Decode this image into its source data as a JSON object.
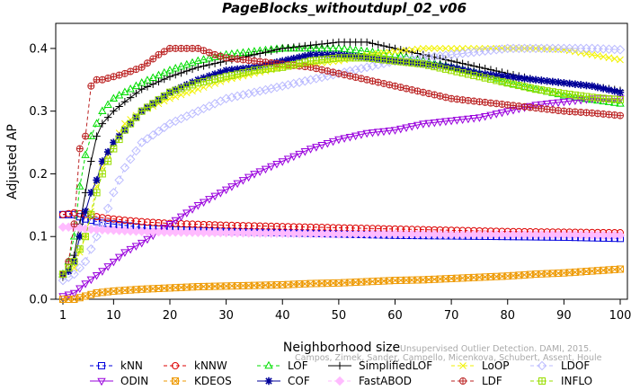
{
  "chart_data": {
    "type": "line",
    "title": "PageBlocks_withoutdupl_02_v06",
    "xlabel": "Neighborhood size",
    "ylabel": "Adjusted AP",
    "xlim": [
      1,
      100
    ],
    "ylim": [
      0,
      0.44
    ],
    "x_ticks": [
      1,
      10,
      20,
      30,
      40,
      50,
      60,
      70,
      80,
      90,
      100
    ],
    "y_ticks": [
      0.0,
      0.1,
      0.2,
      0.3,
      0.4
    ],
    "y_tick_labels": [
      "0.0",
      "0.1",
      "0.2",
      "0.3",
      "0.4"
    ],
    "grid": false,
    "legend_position": "bottom",
    "watermark": [
      "Unsupervised Outlier Detection. DAMI, 2015.",
      "Campos, Zimek, Sander, Campello, Micenkova, Schubert, Assent, Houle"
    ],
    "series": [
      {
        "name": "kNN",
        "color": "#0000dd",
        "marker": "square",
        "dash": "4,3",
        "points": [
          [
            1,
            0.135
          ],
          [
            3,
            0.135
          ],
          [
            5,
            0.128
          ],
          [
            8,
            0.122
          ],
          [
            12,
            0.118
          ],
          [
            16,
            0.113
          ],
          [
            20,
            0.111
          ],
          [
            30,
            0.108
          ],
          [
            40,
            0.106
          ],
          [
            50,
            0.104
          ],
          [
            60,
            0.102
          ],
          [
            70,
            0.101
          ],
          [
            80,
            0.1
          ],
          [
            90,
            0.099
          ],
          [
            100,
            0.097
          ]
        ]
      },
      {
        "name": "kNNW",
        "color": "#dd0000",
        "marker": "circle",
        "dash": "4,3",
        "points": [
          [
            1,
            0.135
          ],
          [
            3,
            0.138
          ],
          [
            5,
            0.135
          ],
          [
            8,
            0.13
          ],
          [
            12,
            0.126
          ],
          [
            16,
            0.123
          ],
          [
            20,
            0.121
          ],
          [
            30,
            0.118
          ],
          [
            40,
            0.116
          ],
          [
            50,
            0.114
          ],
          [
            60,
            0.112
          ],
          [
            70,
            0.11
          ],
          [
            80,
            0.108
          ],
          [
            90,
            0.107
          ],
          [
            100,
            0.106
          ]
        ]
      },
      {
        "name": "LOF",
        "color": "#00dd00",
        "marker": "triangle",
        "dash": "4,3",
        "points": [
          [
            1,
            0.04
          ],
          [
            2,
            0.06
          ],
          [
            3,
            0.1
          ],
          [
            4,
            0.18
          ],
          [
            5,
            0.23
          ],
          [
            6,
            0.26
          ],
          [
            7,
            0.28
          ],
          [
            8,
            0.3
          ],
          [
            10,
            0.32
          ],
          [
            12,
            0.33
          ],
          [
            15,
            0.345
          ],
          [
            20,
            0.365
          ],
          [
            25,
            0.38
          ],
          [
            30,
            0.39
          ],
          [
            35,
            0.395
          ],
          [
            40,
            0.4
          ],
          [
            45,
            0.4
          ],
          [
            50,
            0.4
          ],
          [
            55,
            0.395
          ],
          [
            60,
            0.39
          ],
          [
            65,
            0.38
          ],
          [
            70,
            0.37
          ],
          [
            75,
            0.36
          ],
          [
            80,
            0.345
          ],
          [
            85,
            0.335
          ],
          [
            90,
            0.325
          ],
          [
            95,
            0.318
          ],
          [
            100,
            0.312
          ]
        ]
      },
      {
        "name": "SimplifiedLOF",
        "color": "#000000",
        "marker": "plus",
        "dash": "",
        "points": [
          [
            1,
            0.035
          ],
          [
            2,
            0.045
          ],
          [
            3,
            0.07
          ],
          [
            4,
            0.12
          ],
          [
            5,
            0.17
          ],
          [
            6,
            0.22
          ],
          [
            7,
            0.26
          ],
          [
            8,
            0.28
          ],
          [
            10,
            0.3
          ],
          [
            12,
            0.315
          ],
          [
            15,
            0.335
          ],
          [
            20,
            0.355
          ],
          [
            25,
            0.37
          ],
          [
            30,
            0.38
          ],
          [
            35,
            0.39
          ],
          [
            40,
            0.4
          ],
          [
            45,
            0.405
          ],
          [
            50,
            0.41
          ],
          [
            55,
            0.41
          ],
          [
            60,
            0.4
          ],
          [
            65,
            0.39
          ],
          [
            70,
            0.38
          ],
          [
            75,
            0.37
          ],
          [
            80,
            0.36
          ],
          [
            85,
            0.35
          ],
          [
            90,
            0.345
          ],
          [
            95,
            0.34
          ],
          [
            100,
            0.333
          ]
        ]
      },
      {
        "name": "LoOP",
        "color": "#f2f200",
        "marker": "x",
        "dash": "4,3",
        "points": [
          [
            1,
            0.04
          ],
          [
            3,
            0.05
          ],
          [
            5,
            0.1
          ],
          [
            7,
            0.18
          ],
          [
            8,
            0.21
          ],
          [
            10,
            0.25
          ],
          [
            12,
            0.28
          ],
          [
            15,
            0.3
          ],
          [
            20,
            0.32
          ],
          [
            25,
            0.335
          ],
          [
            30,
            0.35
          ],
          [
            35,
            0.36
          ],
          [
            40,
            0.37
          ],
          [
            45,
            0.375
          ],
          [
            50,
            0.38
          ],
          [
            55,
            0.39
          ],
          [
            60,
            0.395
          ],
          [
            65,
            0.4
          ],
          [
            70,
            0.4
          ],
          [
            75,
            0.4
          ],
          [
            80,
            0.4
          ],
          [
            85,
            0.4
          ],
          [
            90,
            0.398
          ],
          [
            95,
            0.39
          ],
          [
            100,
            0.382
          ]
        ]
      },
      {
        "name": "LDOF",
        "color": "#bbbbff",
        "marker": "diamond",
        "dash": "4,3",
        "points": [
          [
            1,
            0.03
          ],
          [
            3,
            0.04
          ],
          [
            5,
            0.06
          ],
          [
            8,
            0.12
          ],
          [
            10,
            0.17
          ],
          [
            12,
            0.21
          ],
          [
            15,
            0.25
          ],
          [
            20,
            0.28
          ],
          [
            25,
            0.3
          ],
          [
            30,
            0.32
          ],
          [
            35,
            0.33
          ],
          [
            40,
            0.34
          ],
          [
            45,
            0.35
          ],
          [
            50,
            0.36
          ],
          [
            55,
            0.37
          ],
          [
            60,
            0.38
          ],
          [
            65,
            0.385
          ],
          [
            70,
            0.39
          ],
          [
            75,
            0.395
          ],
          [
            80,
            0.4
          ],
          [
            85,
            0.4
          ],
          [
            90,
            0.4
          ],
          [
            95,
            0.4
          ],
          [
            100,
            0.398
          ]
        ]
      },
      {
        "name": "ODIN",
        "color": "#9900dd",
        "marker": "triangle-down",
        "dash": "",
        "points": [
          [
            1,
            0.005
          ],
          [
            3,
            0.01
          ],
          [
            5,
            0.025
          ],
          [
            8,
            0.045
          ],
          [
            10,
            0.06
          ],
          [
            12,
            0.075
          ],
          [
            15,
            0.09
          ],
          [
            20,
            0.12
          ],
          [
            25,
            0.15
          ],
          [
            30,
            0.175
          ],
          [
            35,
            0.2
          ],
          [
            40,
            0.22
          ],
          [
            45,
            0.24
          ],
          [
            50,
            0.255
          ],
          [
            55,
            0.265
          ],
          [
            60,
            0.27
          ],
          [
            65,
            0.28
          ],
          [
            70,
            0.285
          ],
          [
            75,
            0.29
          ],
          [
            80,
            0.3
          ],
          [
            85,
            0.31
          ],
          [
            90,
            0.315
          ],
          [
            95,
            0.32
          ],
          [
            100,
            0.32
          ]
        ]
      },
      {
        "name": "KDEOS",
        "color": "#ee9900",
        "marker": "square-x",
        "dash": "4,3",
        "points": [
          [
            1,
            0.0
          ],
          [
            3,
            0.0
          ],
          [
            5,
            0.005
          ],
          [
            7,
            0.01
          ],
          [
            10,
            0.013
          ],
          [
            15,
            0.016
          ],
          [
            20,
            0.018
          ],
          [
            25,
            0.02
          ],
          [
            30,
            0.021
          ],
          [
            35,
            0.022
          ],
          [
            40,
            0.023
          ],
          [
            45,
            0.025
          ],
          [
            50,
            0.026
          ],
          [
            55,
            0.028
          ],
          [
            60,
            0.03
          ],
          [
            65,
            0.031
          ],
          [
            70,
            0.033
          ],
          [
            75,
            0.035
          ],
          [
            80,
            0.037
          ],
          [
            85,
            0.04
          ],
          [
            90,
            0.042
          ],
          [
            95,
            0.045
          ],
          [
            100,
            0.048
          ]
        ]
      },
      {
        "name": "COF",
        "color": "#000099",
        "marker": "star",
        "dash": "",
        "points": [
          [
            1,
            0.04
          ],
          [
            2,
            0.045
          ],
          [
            3,
            0.06
          ],
          [
            4,
            0.1
          ],
          [
            5,
            0.14
          ],
          [
            6,
            0.17
          ],
          [
            7,
            0.19
          ],
          [
            8,
            0.22
          ],
          [
            10,
            0.25
          ],
          [
            12,
            0.27
          ],
          [
            15,
            0.3
          ],
          [
            20,
            0.33
          ],
          [
            25,
            0.35
          ],
          [
            30,
            0.365
          ],
          [
            35,
            0.37
          ],
          [
            40,
            0.38
          ],
          [
            45,
            0.39
          ],
          [
            50,
            0.39
          ],
          [
            55,
            0.385
          ],
          [
            60,
            0.38
          ],
          [
            65,
            0.375
          ],
          [
            70,
            0.37
          ],
          [
            75,
            0.36
          ],
          [
            80,
            0.355
          ],
          [
            85,
            0.35
          ],
          [
            90,
            0.345
          ],
          [
            95,
            0.34
          ],
          [
            100,
            0.33
          ]
        ]
      },
      {
        "name": "FastABOD",
        "color": "#ffbbff",
        "marker": "diamond-filled",
        "dash": "4,3",
        "points": [
          [
            1,
            0.115
          ],
          [
            3,
            0.115
          ],
          [
            5,
            0.112
          ],
          [
            10,
            0.11
          ],
          [
            15,
            0.108
          ],
          [
            20,
            0.107
          ],
          [
            30,
            0.106
          ],
          [
            40,
            0.105
          ],
          [
            50,
            0.104
          ],
          [
            60,
            0.104
          ],
          [
            70,
            0.103
          ],
          [
            80,
            0.103
          ],
          [
            90,
            0.103
          ],
          [
            100,
            0.102
          ]
        ]
      },
      {
        "name": "LDF",
        "color": "#bb2222",
        "marker": "circle-plus",
        "dash": "4,3",
        "points": [
          [
            1,
            0.04
          ],
          [
            2,
            0.06
          ],
          [
            3,
            0.12
          ],
          [
            4,
            0.24
          ],
          [
            5,
            0.26
          ],
          [
            6,
            0.34
          ],
          [
            7,
            0.35
          ],
          [
            8,
            0.35
          ],
          [
            10,
            0.355
          ],
          [
            12,
            0.36
          ],
          [
            15,
            0.37
          ],
          [
            18,
            0.39
          ],
          [
            20,
            0.4
          ],
          [
            22,
            0.4
          ],
          [
            25,
            0.4
          ],
          [
            28,
            0.39
          ],
          [
            30,
            0.385
          ],
          [
            35,
            0.38
          ],
          [
            40,
            0.375
          ],
          [
            45,
            0.37
          ],
          [
            50,
            0.36
          ],
          [
            55,
            0.35
          ],
          [
            60,
            0.34
          ],
          [
            65,
            0.33
          ],
          [
            70,
            0.32
          ],
          [
            75,
            0.315
          ],
          [
            80,
            0.31
          ],
          [
            85,
            0.305
          ],
          [
            90,
            0.3
          ],
          [
            95,
            0.297
          ],
          [
            100,
            0.293
          ]
        ]
      },
      {
        "name": "INFLO",
        "color": "#99dd00",
        "marker": "square-plus",
        "dash": "4,3",
        "points": [
          [
            1,
            0.04
          ],
          [
            3,
            0.06
          ],
          [
            5,
            0.1
          ],
          [
            7,
            0.17
          ],
          [
            8,
            0.2
          ],
          [
            10,
            0.24
          ],
          [
            12,
            0.27
          ],
          [
            15,
            0.3
          ],
          [
            20,
            0.33
          ],
          [
            25,
            0.345
          ],
          [
            30,
            0.355
          ],
          [
            35,
            0.365
          ],
          [
            40,
            0.37
          ],
          [
            45,
            0.38
          ],
          [
            50,
            0.385
          ],
          [
            55,
            0.385
          ],
          [
            60,
            0.38
          ],
          [
            65,
            0.375
          ],
          [
            70,
            0.365
          ],
          [
            75,
            0.355
          ],
          [
            80,
            0.345
          ],
          [
            85,
            0.335
          ],
          [
            90,
            0.328
          ],
          [
            95,
            0.322
          ],
          [
            100,
            0.318
          ]
        ]
      }
    ]
  }
}
